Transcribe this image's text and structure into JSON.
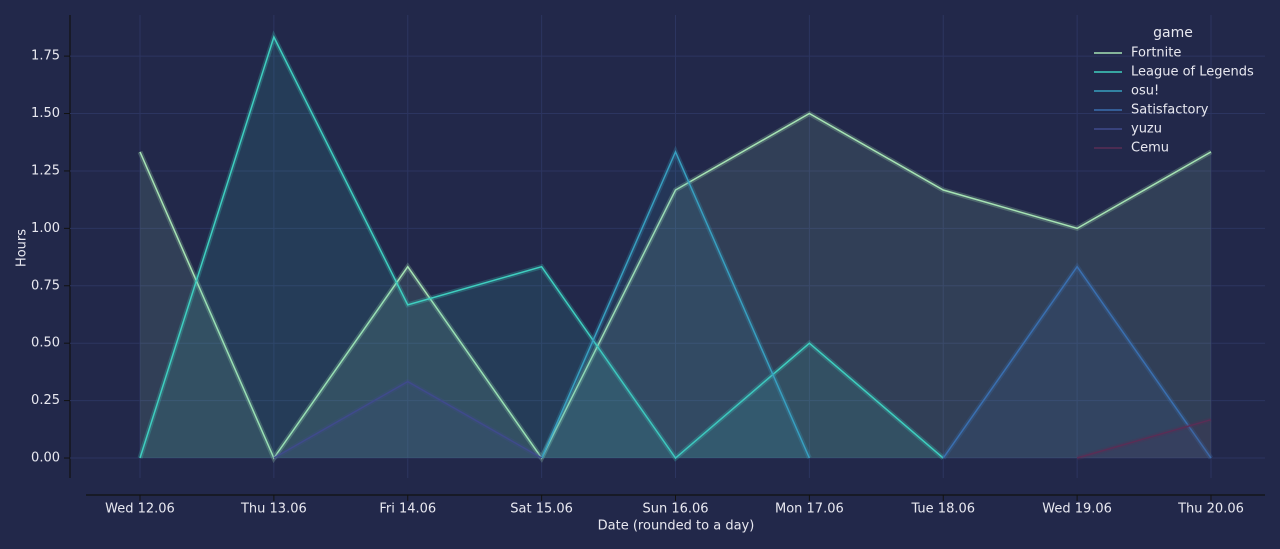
{
  "chart_data": {
    "type": "line",
    "x_label": "Date (rounded to a day)",
    "y_label": "Hours",
    "legend_title": "game",
    "categories": [
      "Wed 12.06",
      "Thu 13.06",
      "Fri 14.06",
      "Sat 15.06",
      "Sun 16.06",
      "Mon 17.06",
      "Tue 18.06",
      "Wed 19.06",
      "Thu 20.06"
    ],
    "series": [
      {
        "name": "Fortnite",
        "color": "#a6e3b4",
        "values": [
          1.333,
          0,
          0.833,
          0,
          1.167,
          1.5,
          1.167,
          1.0,
          1.333
        ]
      },
      {
        "name": "League of Legends",
        "color": "#3fcfc0",
        "values": [
          0,
          1.833,
          0.667,
          0.833,
          0,
          0.5,
          0,
          null,
          null
        ]
      },
      {
        "name": "osu!",
        "color": "#389fc0",
        "values": [
          null,
          null,
          null,
          0,
          1.333,
          0,
          null,
          null,
          null
        ]
      },
      {
        "name": "Satisfactory",
        "color": "#3a6fb0",
        "values": [
          null,
          null,
          null,
          null,
          null,
          null,
          0,
          0.833,
          0
        ]
      },
      {
        "name": "yuzu",
        "color": "#3f4a8c",
        "values": [
          null,
          0,
          0.333,
          0,
          null,
          null,
          null,
          null,
          null
        ]
      },
      {
        "name": "Cemu",
        "color": "#5a2d55",
        "values": [
          null,
          null,
          null,
          null,
          null,
          null,
          null,
          0,
          0.167
        ]
      }
    ],
    "ylim": [
      -0.087,
      1.929
    ],
    "yticks": [
      {
        "value": 0,
        "label": "0.00"
      },
      {
        "value": 0.25,
        "label": "0.25"
      },
      {
        "value": 0.5,
        "label": "0.50"
      },
      {
        "value": 0.75,
        "label": "0.75"
      },
      {
        "value": 1.0,
        "label": "1.00"
      },
      {
        "value": 1.25,
        "label": "1.25"
      },
      {
        "value": 1.5,
        "label": "1.50"
      },
      {
        "value": 1.75,
        "label": "1.75"
      }
    ],
    "grid": true,
    "legend": "upper right"
  }
}
